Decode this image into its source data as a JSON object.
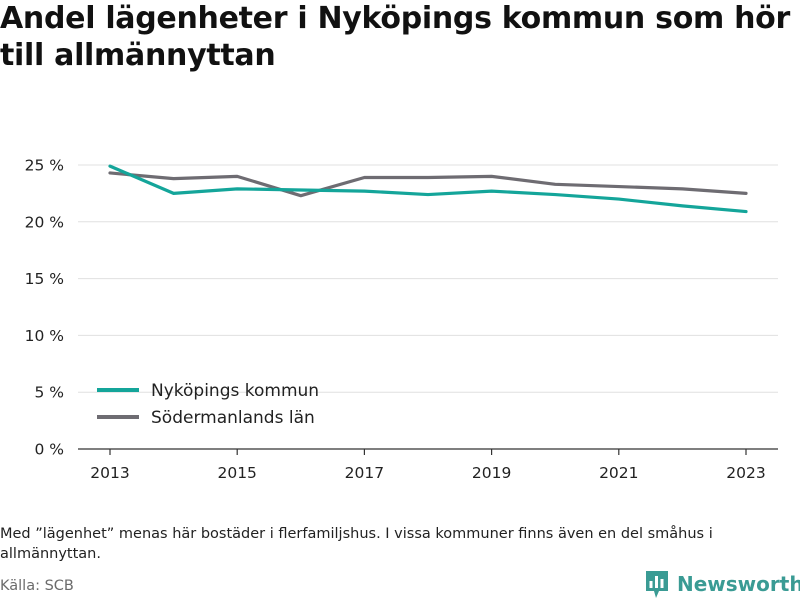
{
  "title": "Andel lägenheter i Nyköpings kommun som hör till allmännyttan",
  "footnote": "Med ”lägenhet” menas här bostäder i flerfamiljshus. I vissa kommuner finns även en del småhus i allmännyttan.",
  "source": "Källa: SCB",
  "brand": {
    "name": "Newsworthy",
    "icon": "bar-chart-logo-icon"
  },
  "colors": {
    "nykoping": "#14a59a",
    "sodermanland": "#6e6c72",
    "grid": "#e0e0e0",
    "axis": "#333333"
  },
  "chart_data": {
    "type": "line",
    "x": [
      2013,
      2014,
      2015,
      2016,
      2017,
      2018,
      2019,
      2020,
      2021,
      2022,
      2023
    ],
    "x_ticks": [
      "2013",
      "2015",
      "2017",
      "2019",
      "2021",
      "2023"
    ],
    "y_ticks": [
      "0 %",
      "5 %",
      "10 %",
      "15 %",
      "20 %",
      "25 %"
    ],
    "ylim": [
      0,
      25
    ],
    "grid": true,
    "legend_position": "bottom-left",
    "series": [
      {
        "name": "Nyköpings kommun",
        "color": "#14a59a",
        "values": [
          24.9,
          22.5,
          22.9,
          22.8,
          22.7,
          22.4,
          22.7,
          22.4,
          22.0,
          21.4,
          20.9
        ]
      },
      {
        "name": "Södermanlands län",
        "color": "#6e6c72",
        "values": [
          24.3,
          23.8,
          24.0,
          22.3,
          23.9,
          23.9,
          24.0,
          23.3,
          23.1,
          22.9,
          22.5
        ]
      }
    ]
  }
}
